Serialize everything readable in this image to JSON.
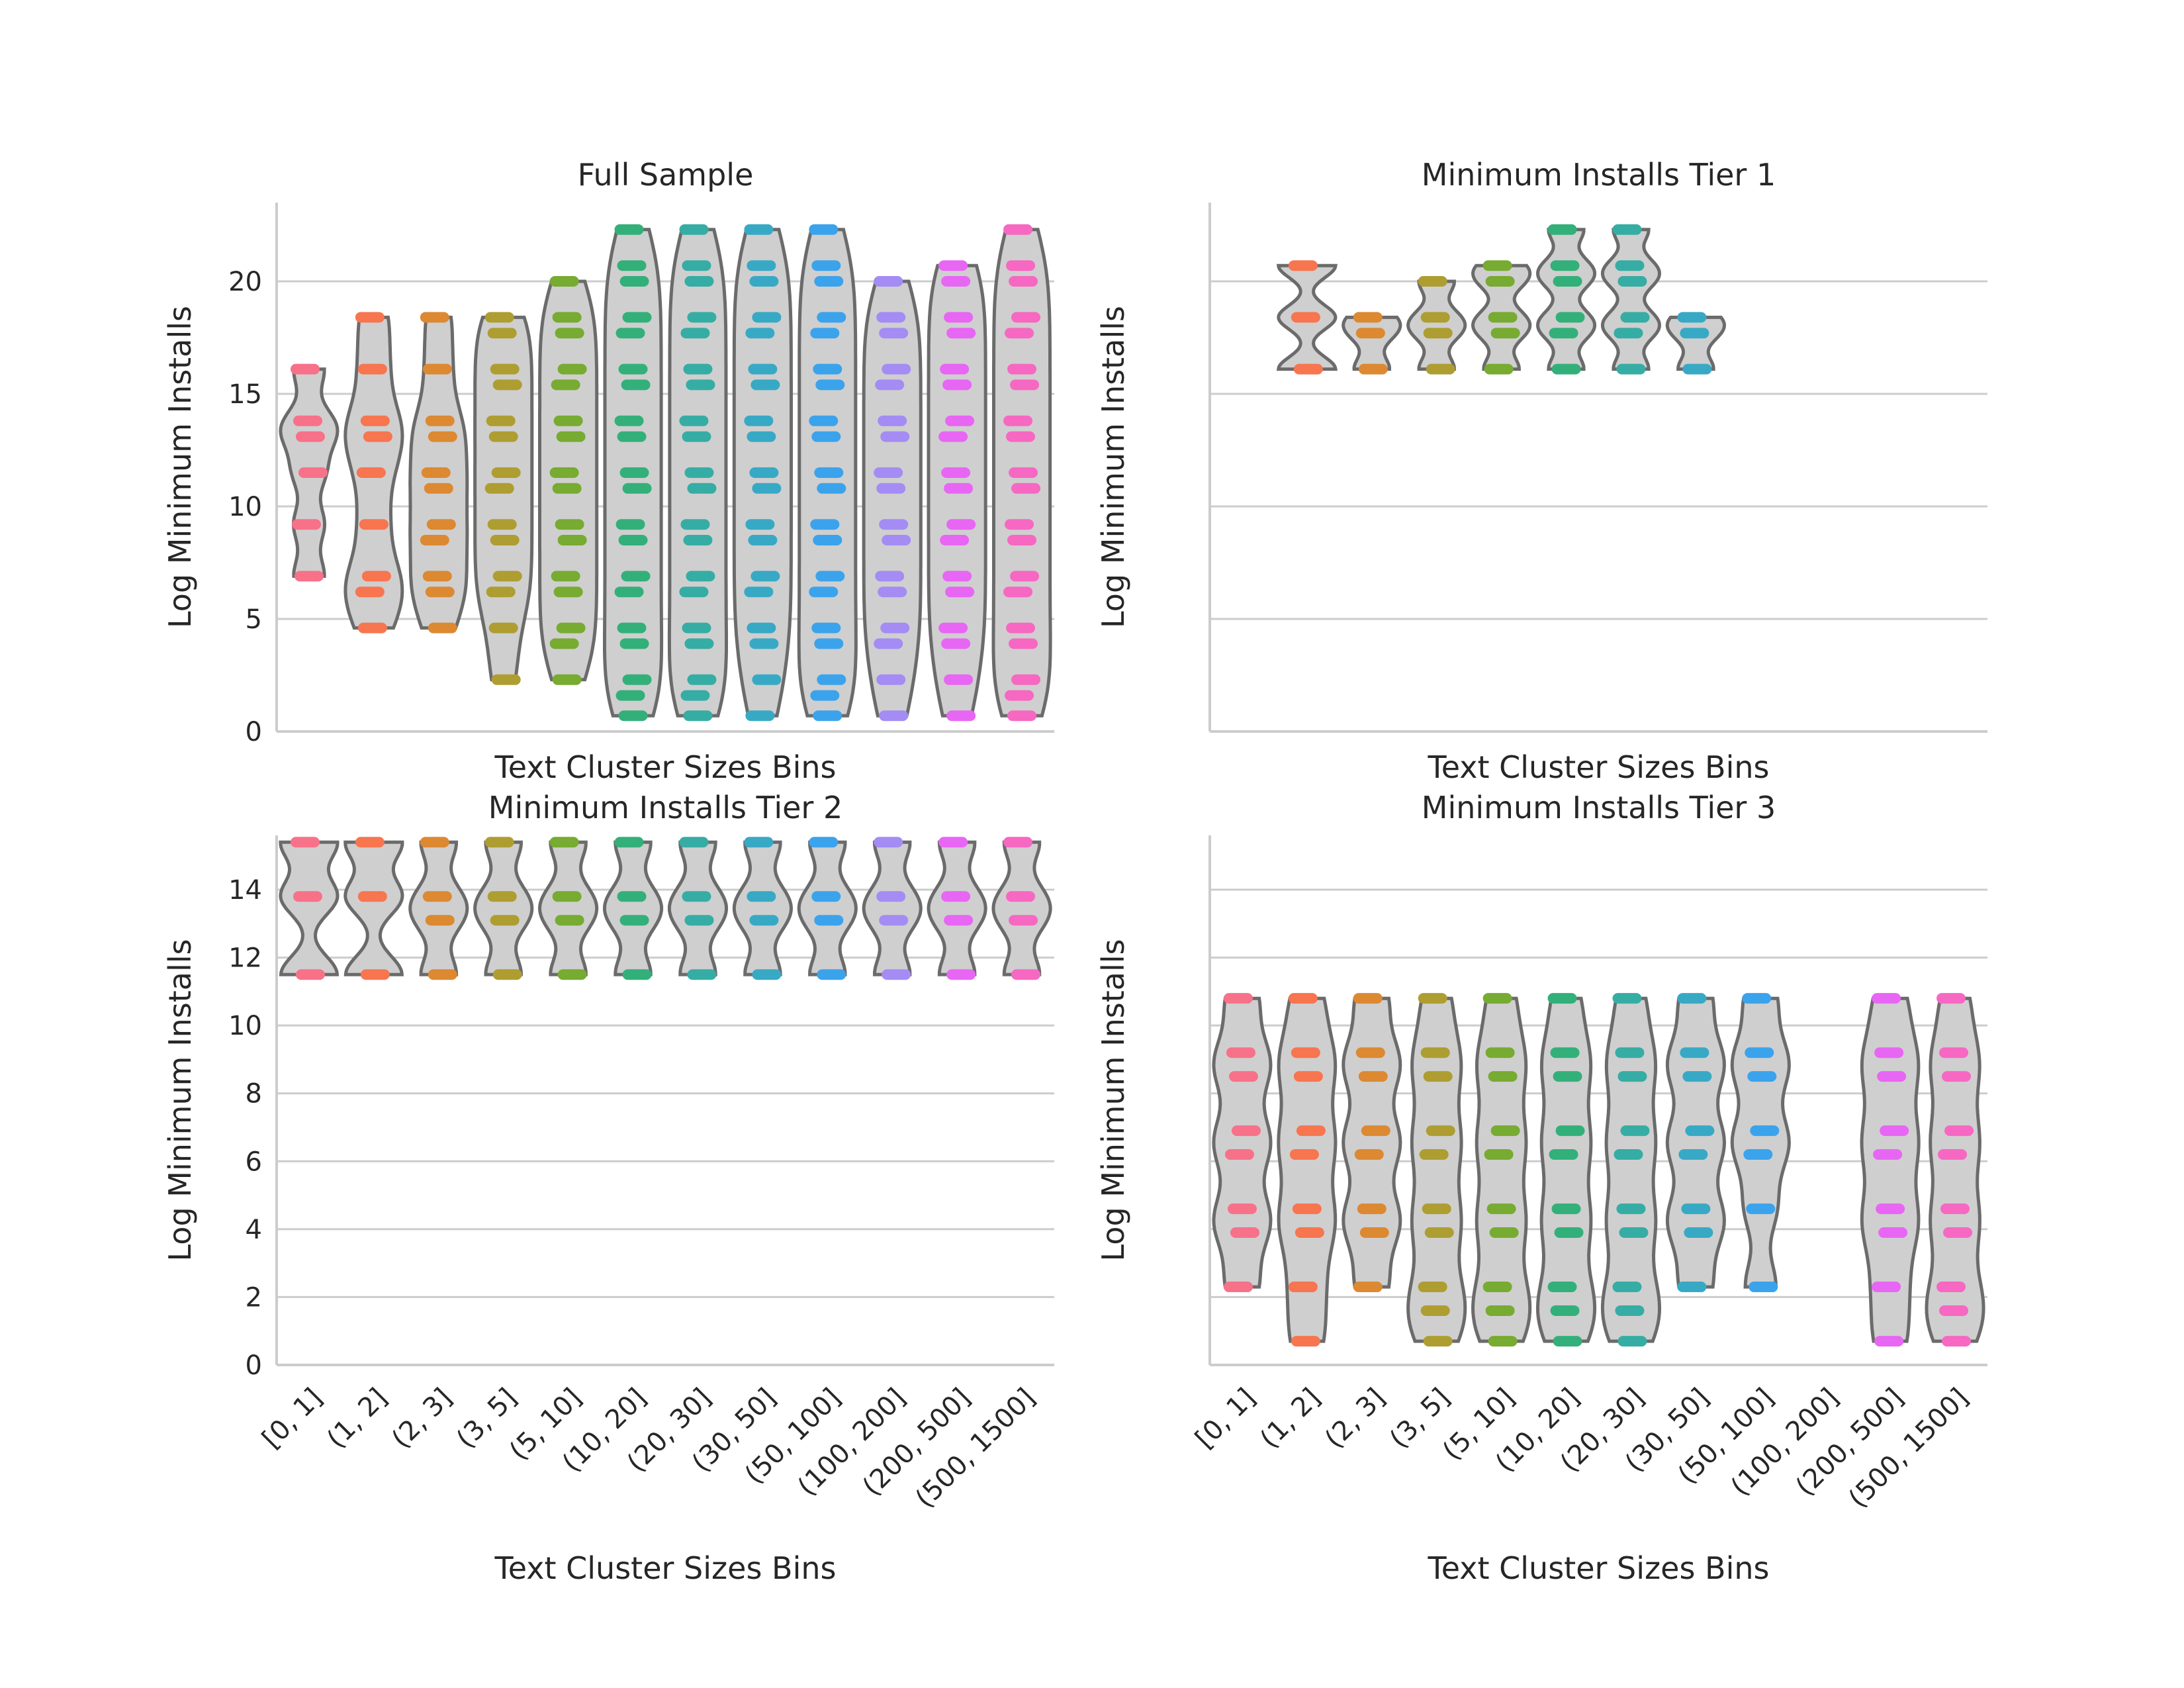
{
  "chart_data": {
    "type": "violin",
    "categories": [
      "[0, 1]",
      "(1, 2]",
      "(2, 3]",
      "(3, 5]",
      "(5, 10]",
      "(10, 20]",
      "(20, 30]",
      "(30, 50]",
      "(50, 100]",
      "(100, 200]",
      "(200, 500]",
      "(500, 1500]"
    ],
    "category_colors": [
      "#f77189",
      "#f7754f",
      "#dc8932",
      "#ae9d31",
      "#77ab31",
      "#33b07a",
      "#36ada4",
      "#38a9c5",
      "#3ba3ec",
      "#a48cf4",
      "#e866f4",
      "#f668c2"
    ],
    "panels": [
      {
        "title": "Full Sample",
        "xlabel": "Text Cluster Sizes Bins",
        "ylabel": "Log Minimum Installs",
        "ylim": [
          0,
          23.5
        ],
        "yticks": [
          0,
          5,
          10,
          15,
          20
        ],
        "show_xticklabels": false,
        "violins": [
          {
            "category": "[0, 1]",
            "min": 6.9,
            "max": 16.1,
            "points": [
              16.1,
              13.8,
              13.1,
              11.5,
              9.2,
              6.9
            ]
          },
          {
            "category": "(1, 2]",
            "min": 4.6,
            "max": 18.4,
            "points": [
              18.4,
              16.1,
              13.8,
              13.1,
              11.5,
              9.2,
              6.9,
              6.2,
              4.6
            ]
          },
          {
            "category": "(2, 3]",
            "min": 4.6,
            "max": 18.4,
            "points": [
              18.4,
              16.1,
              13.8,
              13.1,
              11.5,
              10.8,
              9.2,
              8.5,
              6.9,
              6.2,
              4.6
            ]
          },
          {
            "category": "(3, 5]",
            "min": 2.3,
            "max": 18.4,
            "points": [
              18.4,
              17.7,
              16.1,
              15.4,
              13.8,
              13.1,
              11.5,
              10.8,
              9.2,
              8.5,
              6.9,
              6.2,
              4.6,
              2.3
            ]
          },
          {
            "category": "(5, 10]",
            "min": 2.3,
            "max": 20.0,
            "points": [
              20.0,
              18.4,
              17.7,
              16.1,
              15.4,
              13.8,
              13.1,
              11.5,
              10.8,
              9.2,
              8.5,
              6.9,
              6.2,
              4.6,
              3.9,
              2.3
            ]
          },
          {
            "category": "(10, 20]",
            "min": 0.7,
            "max": 22.3,
            "points": [
              22.3,
              20.7,
              20.0,
              18.4,
              17.7,
              16.1,
              15.4,
              13.8,
              13.1,
              11.5,
              10.8,
              9.2,
              8.5,
              6.9,
              6.2,
              4.6,
              3.9,
              2.3,
              1.6,
              0.7
            ]
          },
          {
            "category": "(20, 30]",
            "min": 0.7,
            "max": 22.3,
            "points": [
              22.3,
              20.7,
              20.0,
              18.4,
              17.7,
              16.1,
              15.4,
              13.8,
              13.1,
              11.5,
              10.8,
              9.2,
              8.5,
              6.9,
              6.2,
              4.6,
              3.9,
              2.3,
              1.6,
              0.7
            ]
          },
          {
            "category": "(30, 50]",
            "min": 0.7,
            "max": 22.3,
            "points": [
              22.3,
              20.7,
              20.0,
              18.4,
              17.7,
              16.1,
              15.4,
              13.8,
              13.1,
              11.5,
              10.8,
              9.2,
              8.5,
              6.9,
              6.2,
              4.6,
              3.9,
              2.3,
              0.7
            ]
          },
          {
            "category": "(50, 100]",
            "min": 0.7,
            "max": 22.3,
            "points": [
              22.3,
              20.7,
              20.0,
              18.4,
              17.7,
              16.1,
              15.4,
              13.8,
              13.1,
              11.5,
              10.8,
              9.2,
              8.5,
              6.9,
              6.2,
              4.6,
              3.9,
              2.3,
              1.6,
              0.7
            ]
          },
          {
            "category": "(100, 200]",
            "min": 0.7,
            "max": 20.0,
            "points": [
              20.0,
              18.4,
              17.7,
              16.1,
              15.4,
              13.8,
              13.1,
              11.5,
              10.8,
              9.2,
              8.5,
              6.9,
              6.2,
              4.6,
              3.9,
              2.3,
              0.7
            ]
          },
          {
            "category": "(200, 500]",
            "min": 0.7,
            "max": 20.7,
            "points": [
              20.7,
              20.0,
              18.4,
              17.7,
              16.1,
              15.4,
              13.8,
              13.1,
              11.5,
              10.8,
              9.2,
              8.5,
              6.9,
              6.2,
              4.6,
              3.9,
              2.3,
              0.7
            ]
          },
          {
            "category": "(500, 1500]",
            "min": 0.7,
            "max": 22.3,
            "points": [
              22.3,
              20.7,
              20.0,
              18.4,
              17.7,
              16.1,
              15.4,
              13.8,
              13.1,
              11.5,
              10.8,
              9.2,
              8.5,
              6.9,
              6.2,
              4.6,
              3.9,
              2.3,
              1.6,
              0.7
            ]
          }
        ]
      },
      {
        "title": "Minimum Installs Tier 1",
        "xlabel": "Text Cluster Sizes Bins",
        "ylabel": "Log Minimum Installs",
        "ylim": [
          0,
          23.5
        ],
        "yticks": [
          0,
          5,
          10,
          15,
          20
        ],
        "show_yticklabels": false,
        "show_xticklabels": false,
        "violins": [
          {
            "category": "(1, 2]",
            "min": 16.1,
            "max": 20.7,
            "points": [
              20.7,
              18.4,
              16.1
            ]
          },
          {
            "category": "(2, 3]",
            "min": 16.1,
            "max": 18.4,
            "points": [
              18.4,
              17.7,
              16.1
            ]
          },
          {
            "category": "(3, 5]",
            "min": 16.1,
            "max": 20.0,
            "points": [
              20.0,
              18.4,
              17.7,
              16.1
            ]
          },
          {
            "category": "(5, 10]",
            "min": 16.1,
            "max": 20.7,
            "points": [
              20.7,
              20.0,
              18.4,
              17.7,
              16.1
            ]
          },
          {
            "category": "(10, 20]",
            "min": 16.1,
            "max": 22.3,
            "points": [
              22.3,
              20.7,
              20.0,
              18.4,
              17.7,
              16.1
            ]
          },
          {
            "category": "(20, 30]",
            "min": 16.1,
            "max": 22.3,
            "points": [
              22.3,
              20.7,
              20.0,
              18.4,
              17.7,
              16.1
            ]
          },
          {
            "category": "(30, 50]",
            "min": 16.1,
            "max": 18.4,
            "points": [
              18.4,
              17.7,
              16.1
            ]
          }
        ]
      },
      {
        "title": "Minimum Installs Tier 2",
        "xlabel": "Text Cluster Sizes Bins",
        "ylabel": "Log Minimum Installs",
        "ylim": [
          0,
          15.6
        ],
        "yticks": [
          0,
          2,
          4,
          6,
          8,
          10,
          12,
          14
        ],
        "show_xticklabels": true,
        "violins": [
          {
            "category": "[0, 1]",
            "min": 11.5,
            "max": 15.4,
            "points": [
              15.4,
              13.8,
              11.5
            ]
          },
          {
            "category": "(1, 2]",
            "min": 11.5,
            "max": 15.4,
            "points": [
              15.4,
              13.8,
              11.5
            ]
          },
          {
            "category": "(2, 3]",
            "min": 11.5,
            "max": 15.4,
            "points": [
              15.4,
              13.8,
              13.1,
              11.5
            ]
          },
          {
            "category": "(3, 5]",
            "min": 11.5,
            "max": 15.4,
            "points": [
              15.4,
              13.8,
              13.1,
              11.5
            ]
          },
          {
            "category": "(5, 10]",
            "min": 11.5,
            "max": 15.4,
            "points": [
              15.4,
              13.8,
              13.1,
              11.5
            ]
          },
          {
            "category": "(10, 20]",
            "min": 11.5,
            "max": 15.4,
            "points": [
              15.4,
              13.8,
              13.1,
              11.5
            ]
          },
          {
            "category": "(20, 30]",
            "min": 11.5,
            "max": 15.4,
            "points": [
              15.4,
              13.8,
              13.1,
              11.5
            ]
          },
          {
            "category": "(30, 50]",
            "min": 11.5,
            "max": 15.4,
            "points": [
              15.4,
              13.8,
              13.1,
              11.5
            ]
          },
          {
            "category": "(50, 100]",
            "min": 11.5,
            "max": 15.4,
            "points": [
              15.4,
              13.8,
              13.1,
              11.5
            ]
          },
          {
            "category": "(100, 200]",
            "min": 11.5,
            "max": 15.4,
            "points": [
              15.4,
              13.8,
              13.1,
              11.5
            ]
          },
          {
            "category": "(200, 500]",
            "min": 11.5,
            "max": 15.4,
            "points": [
              15.4,
              13.8,
              13.1,
              11.5
            ]
          },
          {
            "category": "(500, 1500]",
            "min": 11.5,
            "max": 15.4,
            "points": [
              15.4,
              13.8,
              13.1,
              11.5
            ]
          }
        ]
      },
      {
        "title": "Minimum Installs Tier 3",
        "xlabel": "Text Cluster Sizes Bins",
        "ylabel": "Log Minimum Installs",
        "ylim": [
          0,
          15.6
        ],
        "yticks": [
          0,
          2,
          4,
          6,
          8,
          10,
          12,
          14
        ],
        "show_yticklabels": false,
        "show_xticklabels": true,
        "violins": [
          {
            "category": "[0, 1]",
            "min": 2.3,
            "max": 10.8,
            "points": [
              10.8,
              9.2,
              8.5,
              6.9,
              6.2,
              4.6,
              3.9,
              2.3
            ]
          },
          {
            "category": "(1, 2]",
            "min": 0.7,
            "max": 10.8,
            "points": [
              10.8,
              9.2,
              8.5,
              6.9,
              6.2,
              4.6,
              3.9,
              2.3,
              0.7
            ]
          },
          {
            "category": "(2, 3]",
            "min": 2.3,
            "max": 10.8,
            "points": [
              10.8,
              9.2,
              8.5,
              6.9,
              6.2,
              4.6,
              3.9,
              2.3
            ]
          },
          {
            "category": "(3, 5]",
            "min": 0.7,
            "max": 10.8,
            "points": [
              10.8,
              9.2,
              8.5,
              6.9,
              6.2,
              4.6,
              3.9,
              2.3,
              1.6,
              0.7
            ]
          },
          {
            "category": "(5, 10]",
            "min": 0.7,
            "max": 10.8,
            "points": [
              10.8,
              9.2,
              8.5,
              6.9,
              6.2,
              4.6,
              3.9,
              2.3,
              1.6,
              0.7
            ]
          },
          {
            "category": "(10, 20]",
            "min": 0.7,
            "max": 10.8,
            "points": [
              10.8,
              9.2,
              8.5,
              6.9,
              6.2,
              4.6,
              3.9,
              2.3,
              1.6,
              0.7
            ]
          },
          {
            "category": "(20, 30]",
            "min": 0.7,
            "max": 10.8,
            "points": [
              10.8,
              9.2,
              8.5,
              6.9,
              6.2,
              4.6,
              3.9,
              2.3,
              1.6,
              0.7
            ]
          },
          {
            "category": "(30, 50]",
            "min": 2.3,
            "max": 10.8,
            "points": [
              10.8,
              9.2,
              8.5,
              6.9,
              6.2,
              4.6,
              3.9,
              2.3
            ]
          },
          {
            "category": "(50, 100]",
            "min": 2.3,
            "max": 10.8,
            "points": [
              10.8,
              9.2,
              8.5,
              6.9,
              6.2,
              4.6,
              2.3
            ]
          },
          {
            "category": "(200, 500]",
            "min": 0.7,
            "max": 10.8,
            "points": [
              10.8,
              9.2,
              8.5,
              6.9,
              6.2,
              4.6,
              3.9,
              2.3,
              0.7
            ]
          },
          {
            "category": "(500, 1500]",
            "min": 0.7,
            "max": 10.8,
            "points": [
              10.8,
              9.2,
              8.5,
              6.9,
              6.2,
              4.6,
              3.9,
              2.3,
              1.6,
              0.7
            ]
          }
        ]
      }
    ],
    "grid": true
  }
}
